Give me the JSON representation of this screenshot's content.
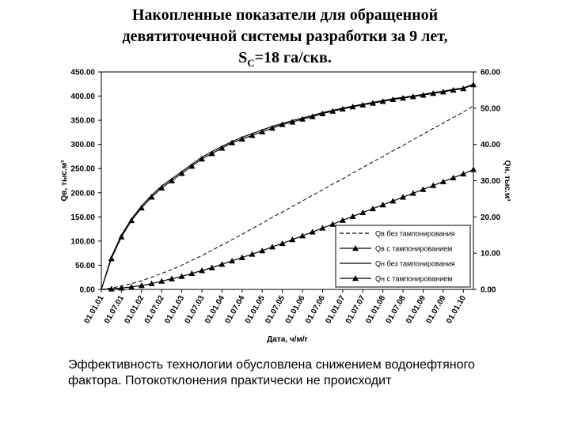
{
  "slide": {
    "title_line1": "Накопленные показатели для обращенной",
    "title_line2": "девятиточечной системы разработки за 9 лет,",
    "title_line3_prefix": "S",
    "title_line3_sub": "C",
    "title_line3_suffix": "=18 га/скв.",
    "caption": "Эффективность технологии обусловлена снижением водонефтяного фактора. Потокотклонения практически не происходит"
  },
  "chart_data": {
    "type": "line",
    "xlabel": "Дата, ч/м/г",
    "ylabel_left": "Qв, тыс.м³",
    "ylabel_right": "Qн, тыс.м³",
    "ylim_left": [
      0,
      450
    ],
    "ylim_right": [
      0,
      60
    ],
    "grid": false,
    "legend_position": "bottom-right",
    "y_ticks_left": [
      "0.00",
      "50.00",
      "100.00",
      "150.00",
      "200.00",
      "250.00",
      "300.00",
      "350.00",
      "400.00",
      "450.00"
    ],
    "y_ticks_right": [
      "0.00",
      "10.00",
      "20.00",
      "30.00",
      "40.00",
      "50.00",
      "60.00"
    ],
    "x_ticks": [
      "01.01.01",
      "01.07.01",
      "01.01.02",
      "01.07.02",
      "01.01.03",
      "01.07.03",
      "01.01.04",
      "01.07.04",
      "01.01.05",
      "01.07.05",
      "01.01.06",
      "01.07.06",
      "01.01.07",
      "01.07.07",
      "01.01.08",
      "01.07.08",
      "01.01.09",
      "01.07.09",
      "01.01.10"
    ],
    "x_months": [
      0,
      3,
      6,
      9,
      12,
      15,
      18,
      21,
      24,
      27,
      30,
      33,
      36,
      39,
      42,
      45,
      48,
      51,
      54,
      57,
      60,
      63,
      66,
      69,
      72,
      75,
      78,
      81,
      84,
      87,
      90,
      93,
      96,
      99,
      102,
      105,
      108,
      111
    ],
    "series": [
      {
        "name": "Qв без тампонирования",
        "axis": "left",
        "style": "dashed",
        "values": [
          0,
          3,
          7,
          12,
          18,
          25,
          33,
          41,
          50,
          60,
          70,
          81,
          92,
          103,
          114,
          126,
          137,
          149,
          160,
          172,
          183,
          195,
          206,
          218,
          229,
          241,
          252,
          264,
          275,
          287,
          298,
          310,
          321,
          333,
          344,
          356,
          367,
          380
        ]
      },
      {
        "name": "Qв с тампонированием",
        "axis": "left",
        "style": "solid-triangles",
        "values": [
          0,
          1,
          3,
          5,
          8,
          12,
          17,
          22,
          27,
          33,
          39,
          45,
          52,
          59,
          66,
          73,
          80,
          88,
          95,
          103,
          111,
          119,
          127,
          135,
          143,
          151,
          159,
          167,
          175,
          183,
          191,
          199,
          207,
          215,
          223,
          231,
          239,
          248
        ]
      },
      {
        "name": "Qн без тампонирования",
        "axis": "right",
        "style": "solid",
        "values": [
          0,
          9,
          15,
          19.5,
          23,
          26,
          28.5,
          30.5,
          32.5,
          34.5,
          36.5,
          38,
          39.5,
          40.8,
          42,
          43,
          44,
          45,
          45.8,
          46.6,
          47.3,
          48,
          48.8,
          49.4,
          50,
          50.6,
          51.1,
          51.6,
          52.1,
          52.6,
          53,
          53.4,
          53.8,
          54.3,
          54.7,
          55.2,
          55.6,
          56.6
        ]
      },
      {
        "name": "Qн с тампонированием",
        "axis": "right",
        "style": "solid-triangles",
        "values": [
          0,
          8.5,
          14.5,
          19,
          22.5,
          25.5,
          28,
          30,
          32,
          34,
          36,
          37.5,
          39,
          40.5,
          41.5,
          42.5,
          43.5,
          44.5,
          45.5,
          46.2,
          47,
          47.7,
          48.5,
          49.2,
          49.8,
          50.4,
          50.9,
          51.4,
          51.9,
          52.4,
          52.8,
          53.2,
          53.6,
          54.1,
          54.5,
          55,
          55.4,
          56.5
        ]
      }
    ]
  }
}
